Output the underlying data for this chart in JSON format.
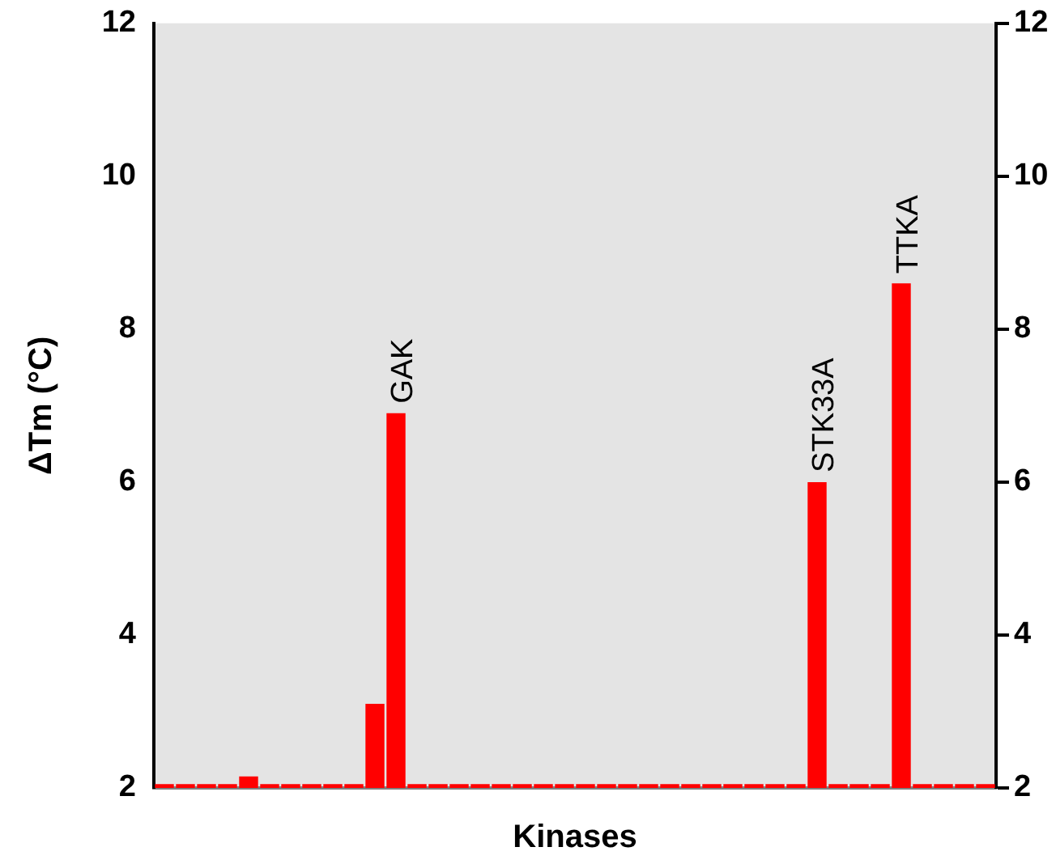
{
  "chart_data": {
    "type": "bar",
    "xlabel": "Kinases",
    "ylabel": "ΔTm (°C)",
    "categories": [
      null,
      null,
      null,
      null,
      null,
      null,
      null,
      null,
      null,
      null,
      null,
      null,
      null,
      null,
      null,
      null,
      null,
      null,
      null,
      null,
      null,
      null,
      null,
      null,
      null,
      null,
      null,
      null,
      null,
      null,
      null,
      null,
      null,
      null,
      null,
      null,
      null,
      null,
      null,
      null
    ],
    "values": [
      2.05,
      2.05,
      2.05,
      2.05,
      2.15,
      2.05,
      2.05,
      2.05,
      2.05,
      2.05,
      3.1,
      6.9,
      2.05,
      2.05,
      2.05,
      2.05,
      2.05,
      2.05,
      2.05,
      2.05,
      2.05,
      2.05,
      2.05,
      2.05,
      2.05,
      2.05,
      2.05,
      2.05,
      2.05,
      2.05,
      2.05,
      6.0,
      2.05,
      2.05,
      2.05,
      8.6,
      2.05,
      2.05,
      2.05,
      2.05
    ],
    "color": "#ff0000",
    "ylim": [
      2,
      12
    ],
    "yticks": [
      2,
      4,
      6,
      8,
      10,
      12
    ],
    "y2lim": [
      2,
      12
    ],
    "y2ticks": [
      2,
      4,
      6,
      8,
      10,
      12
    ],
    "annotations": [
      {
        "text": "GAK",
        "y": 6.9
      },
      {
        "text": "STK33A",
        "y": 6.0
      },
      {
        "text": "TTKA",
        "y": 8.6
      }
    ],
    "grid": false,
    "legend": false
  }
}
